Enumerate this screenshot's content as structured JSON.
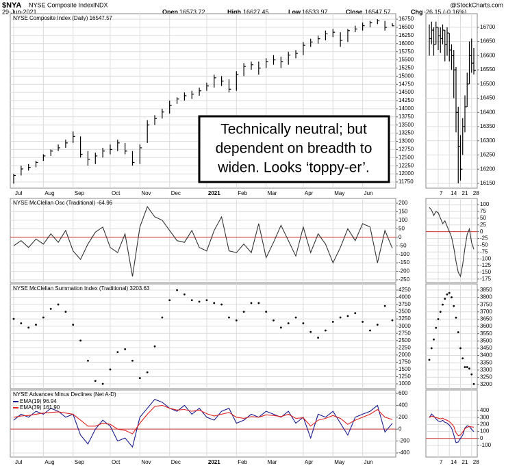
{
  "header": {
    "symbol": "$NYA",
    "name": "NYSE Composite Index",
    "exchange": "INDX",
    "date": "29-Jun-2021",
    "source": "@StockCharts.com",
    "quote": [
      {
        "label": "Open",
        "value": "16573.72"
      },
      {
        "label": "High",
        "value": "16627.45"
      },
      {
        "label": "Low",
        "value": "16533.97"
      },
      {
        "label": "Close",
        "value": "16547.57"
      },
      {
        "label": "Chg",
        "value": "-26.15 (-0.16%)"
      }
    ]
  },
  "chart_data": [
    {
      "type": "ohlc",
      "label": "NYSE Composite Index (Daily) 16547.57",
      "categories": [
        "Jul",
        null,
        null,
        null,
        "Aug",
        null,
        null,
        null,
        "Sep",
        null,
        null,
        null,
        null,
        "Oct",
        null,
        null,
        null,
        "Nov",
        null,
        null,
        null,
        "Dec",
        null,
        null,
        null,
        null,
        "2021",
        null,
        null,
        null,
        "Feb",
        null,
        null,
        null,
        "Mar",
        null,
        null,
        null,
        null,
        "Apr",
        null,
        null,
        null,
        "May",
        null,
        null,
        null,
        "Jun",
        null,
        null,
        null,
        null
      ],
      "high": [
        12000,
        12250,
        12300,
        12400,
        12600,
        12750,
        12900,
        13050,
        13300,
        13150,
        12700,
        12650,
        12800,
        12900,
        13050,
        12950,
        12700,
        12900,
        13650,
        13800,
        14000,
        14250,
        14350,
        14500,
        14550,
        14650,
        14800,
        15050,
        15000,
        14900,
        15150,
        15400,
        15450,
        15450,
        15550,
        15650,
        15600,
        15750,
        15800,
        16050,
        16150,
        16250,
        16400,
        16450,
        16350,
        16450,
        16550,
        16650,
        16700,
        16750,
        16700,
        16627.45
      ],
      "low": [
        11700,
        11950,
        12100,
        12200,
        12400,
        12550,
        12700,
        12800,
        12950,
        12500,
        12250,
        12300,
        12500,
        12600,
        12700,
        12600,
        12250,
        12300,
        12950,
        13500,
        13700,
        13850,
        14150,
        14250,
        14300,
        14400,
        14550,
        14650,
        14700,
        14500,
        14550,
        15000,
        15200,
        15050,
        15250,
        15350,
        15250,
        15350,
        15550,
        15650,
        15900,
        16000,
        16100,
        16200,
        15900,
        16050,
        16350,
        16400,
        16500,
        16600,
        16400,
        16533.97
      ],
      "close": [
        11950,
        12150,
        12200,
        12350,
        12550,
        12700,
        12800,
        12950,
        13150,
        12600,
        12450,
        12550,
        12700,
        12750,
        12950,
        12700,
        12350,
        12800,
        13500,
        13700,
        13900,
        14100,
        14300,
        14400,
        14450,
        14550,
        14700,
        14950,
        14850,
        14600,
        15050,
        15300,
        15350,
        15250,
        15450,
        15500,
        15450,
        15650,
        15700,
        15950,
        16050,
        16150,
        16300,
        16350,
        16100,
        16400,
        16450,
        16550,
        16650,
        16700,
        16500,
        16547.57
      ],
      "color": "#000000",
      "ylim": [
        11560,
        16920
      ],
      "yticks": [
        11750,
        12000,
        12250,
        12500,
        12750,
        13000,
        13250,
        13500,
        13750,
        14000,
        14250,
        14500,
        14750,
        15000,
        15250,
        15500,
        15750,
        16000,
        16250,
        16500,
        16750
      ],
      "grid": true,
      "annotation": [
        "Technically neutral; but",
        "dependent on breadth to",
        "widen. Looks ‘toppy-er’."
      ]
    },
    {
      "type": "line",
      "label": "NYSE McClellan Osc (Traditional) -64.96",
      "values": [
        -50,
        -20,
        -60,
        -10,
        -40,
        20,
        -30,
        40,
        -80,
        -130,
        -40,
        30,
        60,
        -60,
        -90,
        20,
        -230,
        60,
        180,
        120,
        100,
        40,
        -20,
        -30,
        40,
        -60,
        -80,
        40,
        120,
        -80,
        -90,
        -40,
        -90,
        80,
        -120,
        -30,
        70,
        -20,
        -110,
        60,
        -90,
        20,
        -40,
        -150,
        -60,
        50,
        -20,
        80,
        60,
        -150,
        40,
        -64.96
      ],
      "color": "#333333",
      "ylim": [
        -266,
        228
      ],
      "yticks": [
        -250,
        -200,
        -150,
        -100,
        -50,
        0,
        50,
        100,
        150,
        200
      ],
      "grid": true,
      "hline": {
        "value": 0,
        "color": "#d03030"
      }
    },
    {
      "type": "dots",
      "label": "NYSE McClellan Summation Index (Traditional) 3203.63",
      "values": [
        3250,
        3100,
        2950,
        3050,
        3300,
        3600,
        3750,
        3500,
        3050,
        2500,
        1800,
        1100,
        1000,
        1500,
        2100,
        2200,
        1800,
        1200,
        1400,
        2300,
        3300,
        3900,
        4250,
        4100,
        3900,
        3850,
        3900,
        3800,
        3750,
        3300,
        3200,
        3500,
        3800,
        3800,
        3500,
        3200,
        2950,
        3100,
        3300,
        3100,
        2800,
        2600,
        2850,
        3150,
        3300,
        3350,
        3450,
        3150,
        2850,
        3050,
        3700,
        3203.63
      ],
      "color": "#000000",
      "ylim": [
        834,
        4463
      ],
      "yticks": [
        1000,
        1250,
        1500,
        1750,
        2000,
        2250,
        2500,
        2750,
        3000,
        3250,
        3500,
        3750,
        4000,
        4250
      ],
      "grid": true
    },
    {
      "type": "line",
      "label": "NYSE Advances Minus Declines (Net A-D)",
      "categories": [
        "Jul",
        null,
        null,
        null,
        "Aug",
        null,
        null,
        null,
        "Sep",
        null,
        null,
        null,
        null,
        "Oct",
        null,
        null,
        null,
        "Nov",
        null,
        null,
        null,
        "Dec",
        null,
        null,
        null,
        null,
        "2021",
        null,
        null,
        null,
        "Feb",
        null,
        null,
        null,
        "Mar",
        null,
        null,
        null,
        null,
        "Apr",
        null,
        null,
        null,
        "May",
        null,
        null,
        null,
        "Jun",
        null,
        null,
        null,
        null
      ],
      "series": [
        {
          "name": "EMA(19) 96.94",
          "color": "#1a1a8c",
          "values": [
            150,
            250,
            200,
            300,
            250,
            350,
            300,
            200,
            250,
            -100,
            -250,
            0,
            150,
            50,
            -200,
            -150,
            -300,
            200,
            350,
            500,
            450,
            350,
            300,
            400,
            250,
            350,
            200,
            150,
            300,
            350,
            100,
            150,
            250,
            200,
            300,
            250,
            200,
            300,
            100,
            200,
            -150,
            250,
            200,
            300,
            100,
            -100,
            200,
            250,
            300,
            400,
            -50,
            96.94
          ]
        },
        {
          "name": "EMA(39) 161.90",
          "color": "#e02020",
          "values": [
            200,
            220,
            230,
            250,
            270,
            280,
            290,
            270,
            250,
            150,
            50,
            50,
            100,
            80,
            0,
            -20,
            -80,
            100,
            250,
            380,
            400,
            350,
            320,
            330,
            300,
            320,
            260,
            220,
            250,
            280,
            200,
            180,
            210,
            200,
            240,
            230,
            210,
            250,
            180,
            190,
            50,
            150,
            180,
            230,
            180,
            80,
            150,
            200,
            250,
            330,
            200,
            161.9
          ]
        }
      ],
      "ylim": [
        -469,
        657
      ],
      "yticks": [
        -400,
        -200,
        0,
        200,
        400,
        600
      ],
      "grid": true,
      "hline": {
        "value": 0,
        "color": "#d03030"
      }
    },
    {
      "type": "ohlc",
      "categories": [
        null,
        null,
        null,
        null,
        "7",
        null,
        null,
        null,
        null,
        "14",
        null,
        null,
        null,
        null,
        "21",
        null,
        null,
        null,
        null,
        "28",
        null
      ],
      "high": [
        16710,
        16720,
        16700,
        16720,
        16700,
        16700,
        16710,
        16690,
        16700,
        16680,
        16640,
        16620,
        16560,
        16420,
        16320,
        16380,
        16460,
        16540,
        16650,
        16660,
        16627.45
      ],
      "low": [
        16600,
        16640,
        16600,
        16640,
        16620,
        16610,
        16640,
        16580,
        16600,
        16580,
        16550,
        16450,
        16330,
        16150,
        16160,
        16250,
        16330,
        16420,
        16500,
        16540,
        16533.97
      ],
      "close": [
        16660,
        16690,
        16640,
        16700,
        16670,
        16660,
        16690,
        16640,
        16680,
        16620,
        16600,
        16550,
        16400,
        16280,
        16200,
        16350,
        16420,
        16500,
        16600,
        16573.72,
        16547.57
      ],
      "color": "#000000",
      "ylim": [
        16133,
        16748
      ],
      "yticks": [
        16150,
        16200,
        16250,
        16300,
        16350,
        16400,
        16450,
        16500,
        16550,
        16600,
        16650,
        16700
      ],
      "grid": true
    },
    {
      "type": "line",
      "values": [
        90,
        80,
        60,
        75,
        70,
        50,
        30,
        40,
        20,
        0,
        -20,
        -60,
        -110,
        -150,
        -165,
        -120,
        -60,
        -10,
        10,
        -40,
        -64.96
      ],
      "color": "#333333",
      "ylim": [
        -188,
        123
      ],
      "yticks": [
        -175,
        -150,
        -125,
        -100,
        -75,
        -50,
        -25,
        0,
        25,
        50,
        75,
        100
      ],
      "grid": true,
      "hline": {
        "value": 0,
        "color": "#d03030"
      }
    },
    {
      "type": "dots",
      "values": [
        3370,
        3450,
        3510,
        3590,
        3650,
        3700,
        3750,
        3790,
        3820,
        3830,
        3800,
        3740,
        3660,
        3560,
        3450,
        3380,
        3320,
        3320,
        3310,
        3270,
        3203.63
      ],
      "color": "#000000",
      "ylim": [
        3172,
        3892
      ],
      "yticks": [
        3200,
        3250,
        3300,
        3350,
        3400,
        3450,
        3500,
        3550,
        3600,
        3650,
        3700,
        3750,
        3800,
        3850
      ],
      "grid": true
    },
    {
      "type": "line",
      "categories": [
        null,
        null,
        null,
        null,
        "7",
        null,
        null,
        null,
        null,
        "14",
        null,
        null,
        null,
        null,
        "21",
        null,
        null,
        null,
        null,
        "28",
        null
      ],
      "series": [
        {
          "color": "#1a1a8c",
          "values": [
            300,
            350,
            320,
            280,
            250,
            240,
            260,
            230,
            220,
            190,
            150,
            50,
            -60,
            -50,
            0,
            50,
            150,
            180,
            170,
            130,
            96.94
          ]
        },
        {
          "color": "#e02020",
          "values": [
            300,
            320,
            310,
            300,
            290,
            280,
            290,
            270,
            260,
            240,
            210,
            170,
            80,
            40,
            50,
            90,
            140,
            160,
            170,
            165,
            161.9
          ]
        }
      ],
      "ylim": [
        -267,
        694
      ],
      "yticks": [
        -100,
        0,
        100,
        200,
        300,
        400
      ],
      "grid": true,
      "hline": {
        "value": 0,
        "color": "#d03030"
      }
    }
  ]
}
